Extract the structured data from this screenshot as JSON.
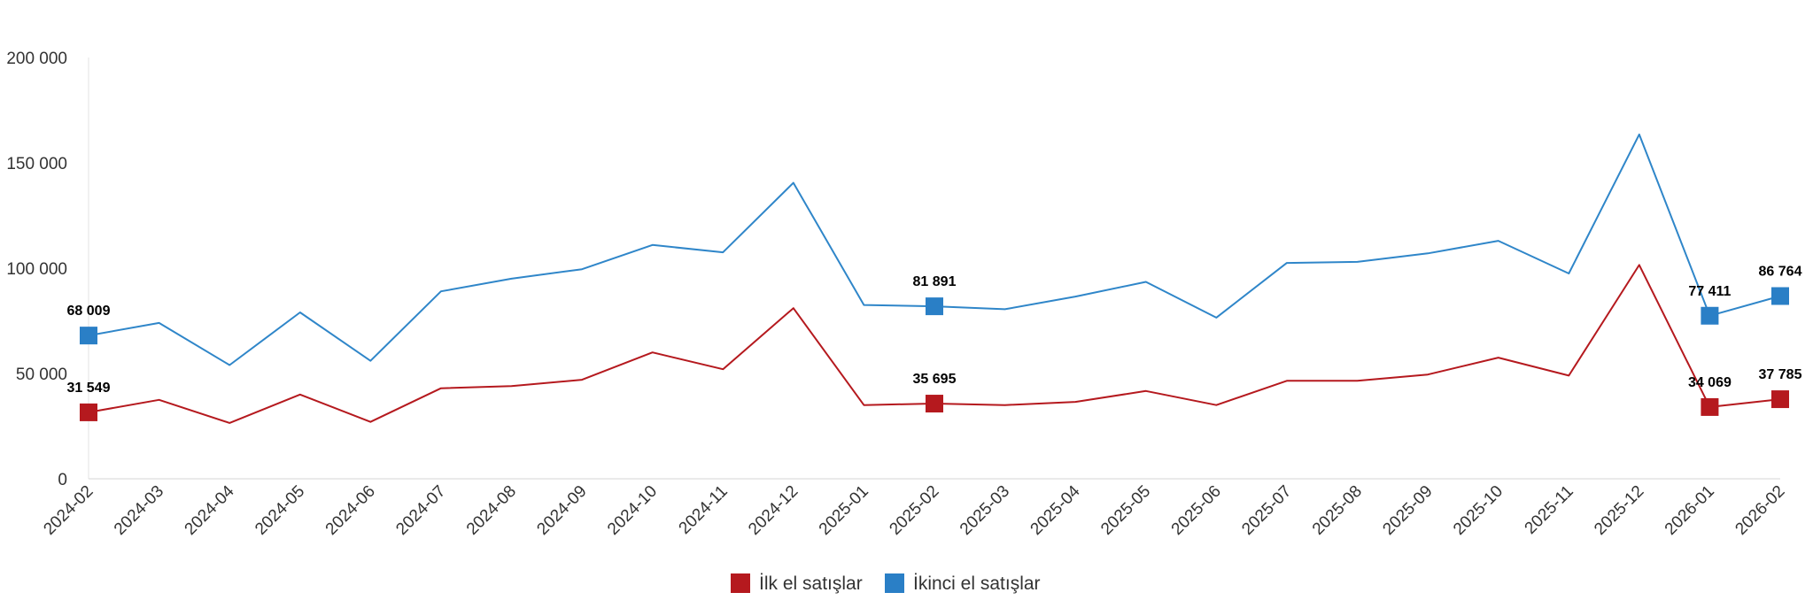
{
  "chart_data": {
    "type": "line",
    "title": "",
    "xlabel": "",
    "ylabel": "",
    "categories": [
      "2024-02",
      "2024-03",
      "2024-04",
      "2024-05",
      "2024-06",
      "2024-07",
      "2024-08",
      "2024-09",
      "2024-10",
      "2024-11",
      "2024-12",
      "2025-01",
      "2025-02",
      "2025-03",
      "2025-04",
      "2025-05",
      "2025-06",
      "2025-07",
      "2025-08",
      "2025-09",
      "2025-10",
      "2025-11",
      "2025-12",
      "2026-01",
      "2026-02"
    ],
    "ylim": [
      0,
      200000
    ],
    "y_ticks": [
      0,
      50000,
      100000,
      150000,
      200000
    ],
    "y_tick_labels": [
      "0",
      "50 000",
      "100 000",
      "150 000",
      "200 000"
    ],
    "grid": false,
    "legend_position": "bottom",
    "series": [
      {
        "name": "İlk el satışlar",
        "color": "#b5191e",
        "values": [
          31549,
          37500,
          26500,
          40000,
          27000,
          43000,
          44000,
          47000,
          60000,
          52000,
          81000,
          35000,
          35695,
          35000,
          36500,
          41700,
          35000,
          46500,
          46500,
          49500,
          57500,
          49000,
          101500,
          34069,
          37785
        ],
        "labeled_points": [
          {
            "index": 0,
            "label": "31 549"
          },
          {
            "index": 12,
            "label": "35 695"
          },
          {
            "index": 23,
            "label": "34 069"
          },
          {
            "index": 24,
            "label": "37 785"
          }
        ]
      },
      {
        "name": "İkinci el satışlar",
        "color": "#2f86c9",
        "marker_color": "#2a7fc6",
        "values": [
          68009,
          74000,
          54000,
          79000,
          56000,
          89000,
          95000,
          99500,
          111000,
          107500,
          140500,
          82500,
          81891,
          80500,
          86500,
          93500,
          76500,
          102500,
          103000,
          107000,
          113000,
          97500,
          163500,
          77411,
          86764
        ],
        "labeled_points": [
          {
            "index": 0,
            "label": "68 009"
          },
          {
            "index": 12,
            "label": "81 891"
          },
          {
            "index": 23,
            "label": "77 411"
          },
          {
            "index": 24,
            "label": "86 764"
          }
        ]
      }
    ]
  }
}
